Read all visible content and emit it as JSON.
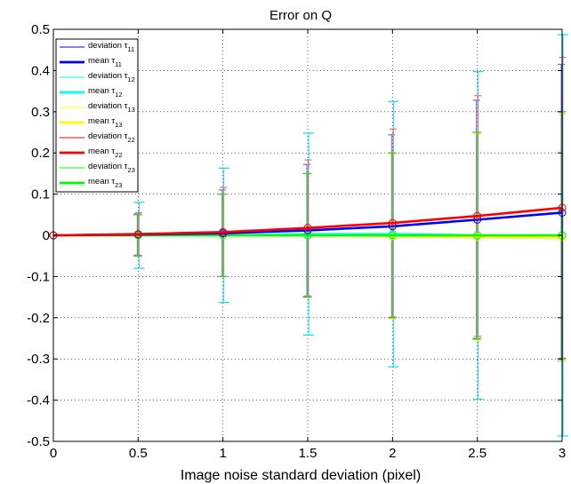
{
  "chart_data": {
    "type": "line",
    "title": "Error on Q",
    "xlabel": "Image noise standard deviation (pixel)",
    "ylabel": "",
    "xlim": [
      0,
      3
    ],
    "ylim": [
      -0.5,
      0.5
    ],
    "grid": true,
    "legend_position": "top-left",
    "x": [
      0,
      0.5,
      1,
      1.5,
      2,
      2.5,
      3
    ],
    "x_ticks": [
      "0",
      "0.5",
      "1",
      "1.5",
      "2",
      "2.5",
      "3"
    ],
    "y_ticks": [
      "-0.5",
      "-0.4",
      "-0.3",
      "-0.2",
      "-0.1",
      "0",
      "0.1",
      "0.2",
      "0.3",
      "0.4",
      "0.5"
    ],
    "series": [
      {
        "name": "τ11",
        "color": "#0000ff",
        "dev_color": "#6666ff",
        "marker": "circle",
        "mean": [
          0,
          0.002,
          0.005,
          0.012,
          0.022,
          0.038,
          0.055
        ],
        "deviation": [
          0,
          0.05,
          0.105,
          0.16,
          0.222,
          0.29,
          0.36
        ]
      },
      {
        "name": "τ12",
        "color": "#00ffff",
        "dev_color": "#00e5e5",
        "marker": "circle",
        "mean": [
          0,
          0.0,
          0.0,
          0.003,
          0.003,
          0.0,
          0.0
        ],
        "deviation": [
          0,
          0.08,
          0.163,
          0.245,
          0.322,
          0.398,
          0.487
        ]
      },
      {
        "name": "τ13",
        "color": "#ffff00",
        "dev_color": "#e5e500",
        "marker": "circle",
        "mean": [
          0,
          0.0,
          0.0,
          0.0,
          -0.002,
          -0.004,
          -0.005
        ],
        "deviation": [
          0,
          0.05,
          0.1,
          0.15,
          0.2,
          0.25,
          0.3
        ]
      },
      {
        "name": "τ22",
        "color": "#ff0000",
        "dev_color": "#ff6666",
        "marker": "circle",
        "mean": [
          0,
          0.003,
          0.008,
          0.018,
          0.03,
          0.047,
          0.067
        ],
        "deviation": [
          0,
          0.052,
          0.108,
          0.165,
          0.228,
          0.292,
          0.365
        ]
      },
      {
        "name": "τ23",
        "color": "#00ff00",
        "dev_color": "#33cc33",
        "marker": "circle",
        "mean": [
          0,
          0.0,
          0.0,
          0.0,
          0.0,
          0.0,
          0.0
        ],
        "deviation": [
          0,
          0.05,
          0.1,
          0.15,
          0.2,
          0.25,
          0.3
        ]
      }
    ],
    "legend": [
      {
        "label": "deviation τ",
        "sub": "11",
        "color": "#0000ff",
        "bold": false
      },
      {
        "label": "mean τ",
        "sub": "11",
        "color": "#0000ff",
        "bold": true
      },
      {
        "label": "deviation τ",
        "sub": "12",
        "color": "#00ffff",
        "bold": false
      },
      {
        "label": "mean τ",
        "sub": "12",
        "color": "#00ffff",
        "bold": true
      },
      {
        "label": "deviation τ",
        "sub": "13",
        "color": "#ffff00",
        "bold": false
      },
      {
        "label": "mean τ",
        "sub": "13",
        "color": "#ffff00",
        "bold": true
      },
      {
        "label": "deviation τ",
        "sub": "22",
        "color": "#ff0000",
        "bold": false
      },
      {
        "label": "mean τ",
        "sub": "22",
        "color": "#ff0000",
        "bold": true
      },
      {
        "label": "deviation τ",
        "sub": "23",
        "color": "#00ff00",
        "bold": false
      },
      {
        "label": "mean τ",
        "sub": "23",
        "color": "#00ff00",
        "bold": true
      }
    ]
  }
}
